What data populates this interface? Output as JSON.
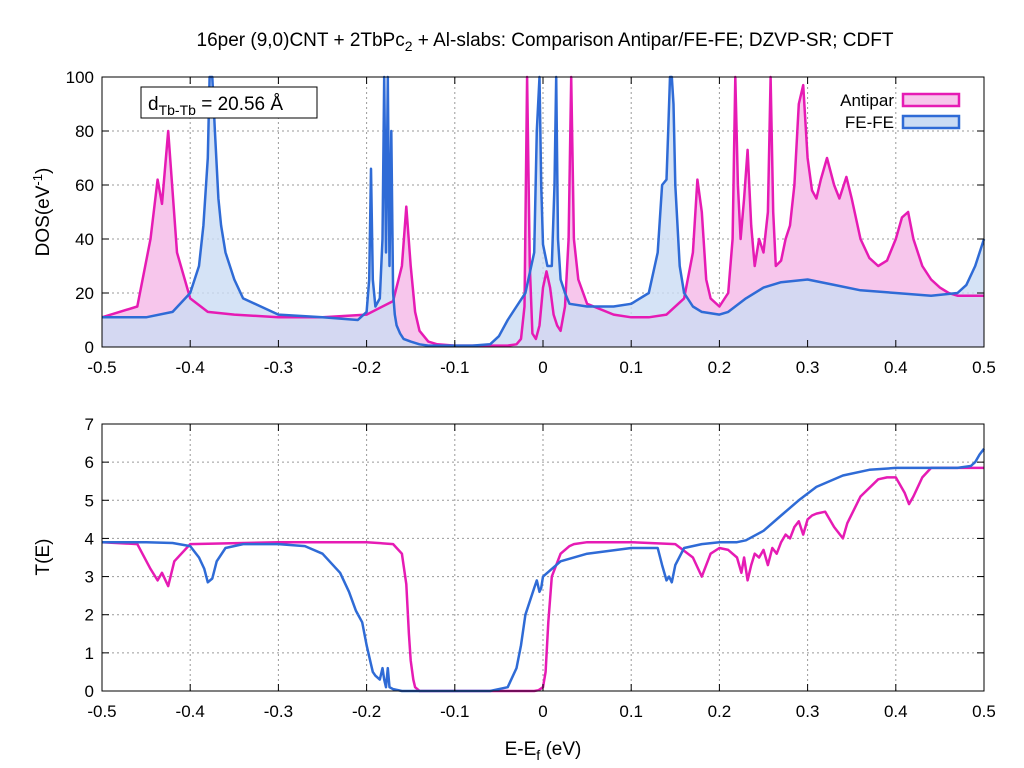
{
  "title": {
    "pre": "16per (9,0)CNT + 2TbPc",
    "sub": "2",
    "post": " + Al-slabs: Comparison Antipar/FE-FE; DZVP-SR; CDFT"
  },
  "annotation": {
    "pre": "d",
    "sub": "Tb-Tb",
    "post": " = 20.56 Å"
  },
  "colors": {
    "antipar": "#e61bb4",
    "fefe": "#2f6bd6",
    "antipar_fill": "#f7c6ec",
    "fefe_fill": "#cbdcf4",
    "overlap_fill": "#c6b4ea"
  },
  "chart_data": [
    {
      "type": "area",
      "panel": "top",
      "xlabel": "",
      "ylabel": {
        "pre": "DOS(eV",
        "sup": "-1",
        "post": ")"
      },
      "xlim": [
        -0.5,
        0.5
      ],
      "ylim": [
        0,
        100
      ],
      "xticks": [
        "-0.5",
        "-0.4",
        "-0.3",
        "-0.2",
        "-0.1",
        "0",
        "0.1",
        "0.2",
        "0.3",
        "0.4",
        "0.5"
      ],
      "yticks": [
        "0",
        "20",
        "40",
        "60",
        "80",
        "100"
      ],
      "grid": true,
      "legend_position": "top-right",
      "series": [
        {
          "name": "Antipar",
          "x": [
            -0.5,
            -0.46,
            -0.445,
            -0.437,
            -0.432,
            -0.425,
            -0.415,
            -0.4,
            -0.38,
            -0.35,
            -0.3,
            -0.25,
            -0.2,
            -0.17,
            -0.16,
            -0.155,
            -0.15,
            -0.145,
            -0.14,
            -0.13,
            -0.12,
            -0.1,
            -0.08,
            -0.06,
            -0.04,
            -0.03,
            -0.025,
            -0.021,
            -0.018,
            -0.015,
            -0.012,
            -0.008,
            -0.004,
            0,
            0.004,
            0.008,
            0.012,
            0.016,
            0.02,
            0.025,
            0.029,
            0.032,
            0.035,
            0.04,
            0.05,
            0.08,
            0.1,
            0.12,
            0.14,
            0.16,
            0.17,
            0.175,
            0.18,
            0.185,
            0.19,
            0.2,
            0.21,
            0.215,
            0.218,
            0.221,
            0.224,
            0.228,
            0.232,
            0.236,
            0.24,
            0.245,
            0.25,
            0.255,
            0.258,
            0.261,
            0.264,
            0.27,
            0.275,
            0.28,
            0.285,
            0.29,
            0.295,
            0.3,
            0.305,
            0.31,
            0.315,
            0.322,
            0.33,
            0.336,
            0.344,
            0.35,
            0.36,
            0.37,
            0.38,
            0.39,
            0.4,
            0.407,
            0.414,
            0.42,
            0.43,
            0.44,
            0.45,
            0.46,
            0.47,
            0.48,
            0.49,
            0.5
          ],
          "values": [
            11,
            15,
            40,
            62,
            53,
            80,
            35,
            18,
            13,
            12,
            11,
            11,
            12,
            17,
            30,
            52,
            30,
            13,
            6,
            2,
            1,
            0.5,
            0.5,
            0.5,
            0.5,
            1,
            3,
            15,
            100,
            30,
            5,
            3,
            8,
            22,
            28,
            22,
            12,
            8,
            6,
            15,
            40,
            100,
            40,
            25,
            16,
            12,
            11,
            11,
            12,
            18,
            35,
            62,
            50,
            25,
            18,
            15,
            20,
            40,
            100,
            60,
            40,
            55,
            73,
            45,
            30,
            40,
            35,
            50,
            100,
            50,
            30,
            32,
            40,
            45,
            60,
            90,
            97,
            70,
            58,
            55,
            62,
            70,
            60,
            55,
            63,
            55,
            40,
            33,
            30,
            32,
            40,
            48,
            50,
            40,
            30,
            25,
            22,
            20,
            19,
            19,
            19,
            19
          ]
        },
        {
          "name": "FE-FE",
          "x": [
            -0.5,
            -0.45,
            -0.42,
            -0.4,
            -0.39,
            -0.385,
            -0.38,
            -0.378,
            -0.375,
            -0.372,
            -0.368,
            -0.365,
            -0.36,
            -0.35,
            -0.34,
            -0.3,
            -0.25,
            -0.21,
            -0.2,
            -0.197,
            -0.195,
            -0.193,
            -0.19,
            -0.185,
            -0.182,
            -0.18,
            -0.178,
            -0.176,
            -0.174,
            -0.172,
            -0.17,
            -0.168,
            -0.166,
            -0.162,
            -0.158,
            -0.15,
            -0.14,
            -0.13,
            -0.12,
            -0.1,
            -0.08,
            -0.06,
            -0.05,
            -0.04,
            -0.03,
            -0.02,
            -0.01,
            -0.007,
            -0.004,
            -0.002,
            0,
            0.005,
            0.01,
            0.013,
            0.015,
            0.017,
            0.02,
            0.025,
            0.03,
            0.05,
            0.08,
            0.1,
            0.12,
            0.13,
            0.135,
            0.14,
            0.142,
            0.144,
            0.146,
            0.148,
            0.15,
            0.155,
            0.16,
            0.17,
            0.18,
            0.2,
            0.21,
            0.23,
            0.25,
            0.27,
            0.3,
            0.33,
            0.36,
            0.4,
            0.44,
            0.47,
            0.48,
            0.49,
            0.495,
            0.5
          ],
          "values": [
            11,
            11,
            13,
            20,
            30,
            45,
            70,
            100,
            100,
            80,
            55,
            45,
            35,
            25,
            18,
            12,
            11,
            10,
            13,
            25,
            66,
            25,
            15,
            18,
            40,
            100,
            35,
            100,
            30,
            80,
            20,
            12,
            8,
            5,
            3,
            2,
            1,
            0.5,
            0.5,
            0.5,
            0.5,
            1,
            4,
            10,
            15,
            20,
            35,
            80,
            100,
            60,
            38,
            30,
            30,
            60,
            100,
            40,
            25,
            20,
            16,
            15,
            15,
            16,
            20,
            35,
            60,
            62,
            80,
            100,
            100,
            90,
            60,
            30,
            20,
            15,
            13,
            12,
            13,
            18,
            22,
            24,
            25,
            23,
            21,
            20,
            19,
            20,
            23,
            30,
            35,
            40
          ]
        }
      ]
    },
    {
      "type": "line",
      "panel": "bottom",
      "xlabel": {
        "pre": "E-E",
        "sub": "f",
        "post": " (eV)"
      },
      "ylabel": "T(E)",
      "xlim": [
        -0.5,
        0.5
      ],
      "ylim": [
        0,
        7
      ],
      "xticks": [
        "-0.5",
        "-0.4",
        "-0.3",
        "-0.2",
        "-0.1",
        "0",
        "0.1",
        "0.2",
        "0.3",
        "0.4",
        "0.5"
      ],
      "yticks": [
        "0",
        "1",
        "2",
        "3",
        "4",
        "5",
        "6",
        "7"
      ],
      "grid": true,
      "series": [
        {
          "name": "Antipar",
          "x": [
            -0.5,
            -0.46,
            -0.445,
            -0.437,
            -0.432,
            -0.425,
            -0.418,
            -0.4,
            -0.3,
            -0.2,
            -0.17,
            -0.16,
            -0.155,
            -0.152,
            -0.15,
            -0.147,
            -0.145,
            -0.14,
            -0.1,
            -0.05,
            -0.02,
            -0.01,
            -0.005,
            0,
            0.003,
            0.006,
            0.01,
            0.02,
            0.03,
            0.035,
            0.05,
            0.1,
            0.15,
            0.17,
            0.18,
            0.19,
            0.2,
            0.21,
            0.22,
            0.225,
            0.228,
            0.232,
            0.236,
            0.24,
            0.245,
            0.25,
            0.255,
            0.26,
            0.265,
            0.27,
            0.275,
            0.28,
            0.285,
            0.29,
            0.295,
            0.3,
            0.305,
            0.31,
            0.32,
            0.33,
            0.34,
            0.345,
            0.36,
            0.38,
            0.39,
            0.4,
            0.41,
            0.415,
            0.42,
            0.43,
            0.44,
            0.45,
            0.47,
            0.49,
            0.5
          ],
          "values": [
            3.9,
            3.85,
            3.2,
            2.9,
            3.1,
            2.75,
            3.4,
            3.85,
            3.9,
            3.9,
            3.85,
            3.6,
            2.8,
            1.5,
            0.8,
            0.3,
            0.1,
            0,
            0,
            0,
            0,
            0,
            0.02,
            0.1,
            0.5,
            1.8,
            3.0,
            3.6,
            3.8,
            3.85,
            3.9,
            3.9,
            3.85,
            3.5,
            3.0,
            3.6,
            3.75,
            3.7,
            3.5,
            3.1,
            3.5,
            2.9,
            3.3,
            3.6,
            3.5,
            3.7,
            3.3,
            3.75,
            3.6,
            3.9,
            4.1,
            4.0,
            4.3,
            4.45,
            4.1,
            4.5,
            4.6,
            4.65,
            4.7,
            4.3,
            4.0,
            4.4,
            5.1,
            5.55,
            5.6,
            5.6,
            5.2,
            4.9,
            5.1,
            5.6,
            5.85,
            5.85,
            5.85,
            5.85,
            5.85
          ]
        },
        {
          "name": "FE-FE",
          "x": [
            -0.5,
            -0.45,
            -0.42,
            -0.4,
            -0.39,
            -0.384,
            -0.38,
            -0.375,
            -0.37,
            -0.36,
            -0.34,
            -0.3,
            -0.27,
            -0.25,
            -0.23,
            -0.22,
            -0.212,
            -0.205,
            -0.2,
            -0.195,
            -0.193,
            -0.19,
            -0.185,
            -0.182,
            -0.18,
            -0.178,
            -0.176,
            -0.174,
            -0.17,
            -0.16,
            -0.14,
            -0.1,
            -0.06,
            -0.04,
            -0.03,
            -0.025,
            -0.02,
            -0.01,
            -0.007,
            -0.004,
            -0.002,
            0,
            0.02,
            0.05,
            0.1,
            0.13,
            0.135,
            0.14,
            0.143,
            0.146,
            0.15,
            0.16,
            0.18,
            0.2,
            0.22,
            0.23,
            0.25,
            0.27,
            0.29,
            0.31,
            0.34,
            0.37,
            0.4,
            0.44,
            0.47,
            0.485,
            0.49,
            0.495,
            0.5
          ],
          "values": [
            3.9,
            3.9,
            3.88,
            3.8,
            3.5,
            3.2,
            2.85,
            2.95,
            3.4,
            3.75,
            3.85,
            3.85,
            3.8,
            3.6,
            3.1,
            2.6,
            2.1,
            1.8,
            1.2,
            0.7,
            0.5,
            0.4,
            0.3,
            0.6,
            0.3,
            0.1,
            0.6,
            0.1,
            0.05,
            0,
            0,
            0,
            0,
            0.1,
            0.6,
            1.2,
            2.0,
            2.7,
            2.9,
            2.6,
            2.7,
            3.0,
            3.4,
            3.6,
            3.75,
            3.75,
            3.3,
            2.9,
            3.0,
            2.85,
            3.3,
            3.75,
            3.85,
            3.9,
            3.9,
            3.95,
            4.2,
            4.6,
            5.0,
            5.35,
            5.65,
            5.8,
            5.85,
            5.85,
            5.85,
            5.9,
            6.0,
            6.2,
            6.35
          ]
        }
      ]
    }
  ]
}
